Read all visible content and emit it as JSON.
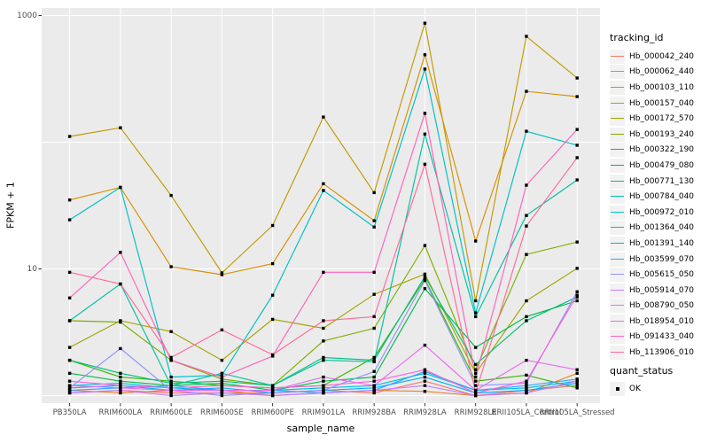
{
  "figure": {
    "background": "#FFFFFF",
    "panel_background": "#EBEBEB",
    "gridline_color": "#FFFFFF",
    "tick_label_color": "#4D4D4D",
    "point_color": "#000000"
  },
  "legend": {
    "tracking_title": "tracking_id",
    "quant_title": "quant_status",
    "quant_label": "OK"
  },
  "chart_data": {
    "type": "line",
    "title": "",
    "xlabel": "sample_name",
    "ylabel": "FPKM + 1",
    "y_scale": "log10",
    "ylim": [
      1,
      1000
    ],
    "grid": true,
    "legend_position": "right",
    "marker": {
      "shape": "square",
      "color": "#000000",
      "meaning": "quant_status OK"
    },
    "y_tick_labels": [
      {
        "label": "1000",
        "value": 1000
      },
      {
        "label": "10",
        "value": 10
      }
    ],
    "gridline_values": [
      1,
      10,
      100,
      1000
    ],
    "categories": [
      "PB350LA",
      "RRIM600LA",
      "RRIM600LE",
      "RRIM600SE",
      "RRIM600PE",
      "RRIM901LA",
      "RRIM928BA",
      "RRIM928LA",
      "RRIM928LE",
      "RRII105LA_Control",
      "RRII105LA_Stressed"
    ],
    "series": [
      {
        "name": "Hb_000042_240",
        "color": "#F8766D",
        "values": [
          1.05,
          1.1,
          1.05,
          1.05,
          1.05,
          1.1,
          1.05,
          1.3,
          1.0,
          1.1,
          1.2
        ]
      },
      {
        "name": "Hb_000062_440",
        "color": "#EA8331",
        "values": [
          1.1,
          1.05,
          1.1,
          1.1,
          1.0,
          1.05,
          1.1,
          1.08,
          1.0,
          1.05,
          1.5
        ]
      },
      {
        "name": "Hb_000103_110",
        "color": "#D89000",
        "values": [
          35,
          44,
          10.4,
          9.0,
          11,
          47,
          24,
          490,
          16.6,
          252,
          229
        ]
      },
      {
        "name": "Hb_000157_040",
        "color": "#C09B00",
        "values": [
          111,
          130,
          38,
          9.3,
          22,
          158,
          40,
          870,
          5.6,
          685,
          321
        ]
      },
      {
        "name": "Hb_000172_570",
        "color": "#A3A500",
        "values": [
          2.4,
          3.9,
          3.2,
          1.9,
          4.0,
          3.4,
          6.3,
          9.1,
          1.5,
          5.6,
          10.1
        ]
      },
      {
        "name": "Hb_000193_240",
        "color": "#7CAE00",
        "values": [
          3.9,
          3.8,
          1.9,
          1.35,
          1.2,
          2.7,
          3.4,
          15.3,
          1.6,
          13,
          16.3
        ]
      },
      {
        "name": "Hb_000322_190",
        "color": "#39B600",
        "values": [
          1.9,
          1.4,
          1.3,
          1.2,
          1.15,
          1.2,
          2.0,
          8.3,
          1.3,
          1.45,
          1.15
        ]
      },
      {
        "name": "Hb_000479_080",
        "color": "#00BB4E",
        "values": [
          1.5,
          1.3,
          1.2,
          1.25,
          1.1,
          1.3,
          1.4,
          7.0,
          2.4,
          4.2,
          5.6
        ]
      },
      {
        "name": "Hb_000771_130",
        "color": "#00BF7D",
        "values": [
          1.9,
          1.5,
          1.25,
          1.3,
          1.2,
          2.0,
          1.9,
          8.7,
          1.76,
          3.9,
          6.0
        ]
      },
      {
        "name": "Hb_000784_040",
        "color": "#00C1A3",
        "values": [
          3.9,
          7.6,
          1.2,
          1.5,
          1.2,
          1.9,
          1.85,
          116,
          4.2,
          26.4,
          50.4
        ]
      },
      {
        "name": "Hb_000972_010",
        "color": "#00BFC4",
        "values": [
          24.4,
          44,
          1.4,
          1.45,
          6.2,
          41.6,
          21.4,
          378,
          4.5,
          122,
          94.6
        ]
      },
      {
        "name": "Hb_001364_040",
        "color": "#00BAE0",
        "values": [
          1.2,
          1.25,
          1.15,
          1.1,
          1.1,
          1.15,
          1.2,
          1.5,
          1.1,
          1.15,
          1.3
        ]
      },
      {
        "name": "Hb_001391_140",
        "color": "#00B0F6",
        "values": [
          1.15,
          1.2,
          1.1,
          1.15,
          1.05,
          1.1,
          1.15,
          1.4,
          1.05,
          1.1,
          1.25
        ]
      },
      {
        "name": "Hb_003599_070",
        "color": "#35A2FF",
        "values": [
          1.1,
          1.15,
          1.2,
          1.1,
          1.1,
          1.05,
          1.1,
          1.55,
          1.1,
          1.2,
          1.35
        ]
      },
      {
        "name": "Hb_005615_050",
        "color": "#9590FF",
        "values": [
          1.15,
          2.35,
          1.1,
          1.0,
          1.05,
          1.1,
          1.55,
          8.1,
          1.2,
          1.25,
          6.6
        ]
      },
      {
        "name": "Hb_005914_070",
        "color": "#C77CFF",
        "values": [
          1.05,
          1.1,
          1.0,
          1.05,
          1.0,
          1.05,
          1.1,
          1.2,
          1.0,
          1.05,
          1.3
        ]
      },
      {
        "name": "Hb_008790_050",
        "color": "#E76BF3",
        "values": [
          1.2,
          1.15,
          1.1,
          1.1,
          1.1,
          1.4,
          1.2,
          2.5,
          1.1,
          1.9,
          1.6
        ]
      },
      {
        "name": "Hb_018954_010",
        "color": "#FA62DB",
        "values": [
          1.3,
          1.2,
          1.15,
          1.2,
          1.15,
          1.2,
          1.3,
          1.6,
          1.05,
          1.3,
          6.2
        ]
      },
      {
        "name": "Hb_091433_040",
        "color": "#FF62BC",
        "values": [
          5.9,
          13.5,
          1.9,
          1.4,
          2.05,
          9.4,
          9.4,
          169,
          1.4,
          45.8,
          126
        ]
      },
      {
        "name": "Hb_113906_010",
        "color": "#FF6A98",
        "values": [
          9.4,
          7.6,
          2.0,
          3.3,
          2.1,
          3.9,
          4.2,
          67,
          1.05,
          21.8,
          75.5
        ]
      }
    ]
  }
}
